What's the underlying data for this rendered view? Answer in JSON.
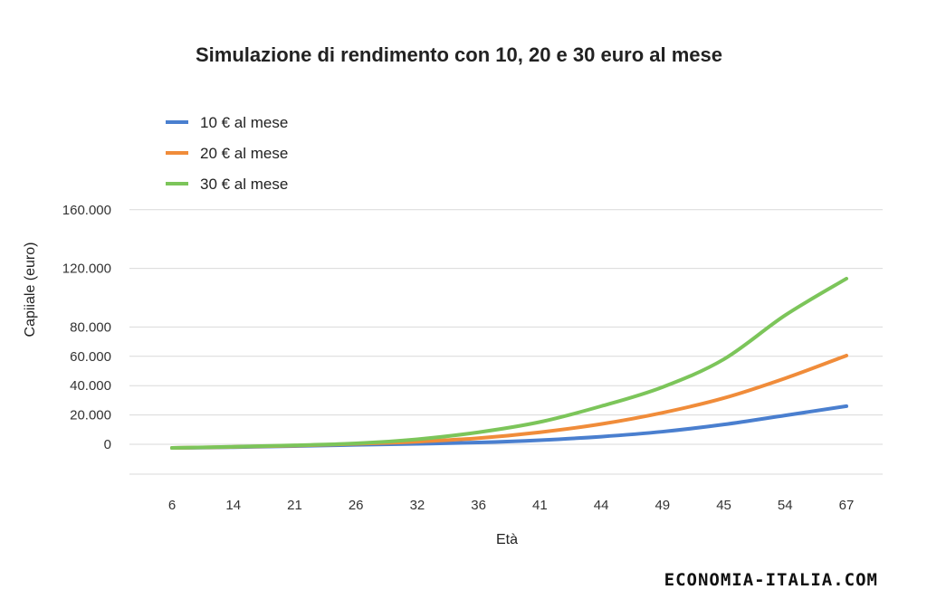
{
  "chart_data": {
    "type": "line",
    "title": "Simulazione di rendimento con 10, 20 e 30 euro al mese",
    "xlabel": "Età",
    "ylabel": "Capiiale (euro)",
    "categories": [
      "6",
      "14",
      "21",
      "26",
      "32",
      "36",
      "41",
      "44",
      "49",
      "45",
      "54",
      "67"
    ],
    "y_ticks": [
      "0",
      "20.000",
      "40.000",
      "60.000",
      "80.000",
      "120.000",
      "160.000"
    ],
    "ylim": [
      -13000,
      160000
    ],
    "grid": true,
    "legend_position": "top-left",
    "series": [
      {
        "name": "10 € al mese",
        "color": "#4a7fcf",
        "values": [
          -2500,
          -2000,
          -1200,
          -400,
          300,
          1200,
          2800,
          5200,
          8600,
          13500,
          19700,
          26000
        ]
      },
      {
        "name": "20 € al mese",
        "color": "#f08c3a",
        "values": [
          -2500,
          -1800,
          -900,
          300,
          1800,
          4200,
          8200,
          13800,
          21500,
          31500,
          45000,
          60500
        ]
      },
      {
        "name": "30 € al mese",
        "color": "#7cc55a",
        "values": [
          -2500,
          -1700,
          -700,
          600,
          3400,
          8200,
          15200,
          26000,
          39000,
          58000,
          88000,
          113000
        ]
      }
    ]
  },
  "watermark": "ECONOMIA-ITALIA.COM"
}
